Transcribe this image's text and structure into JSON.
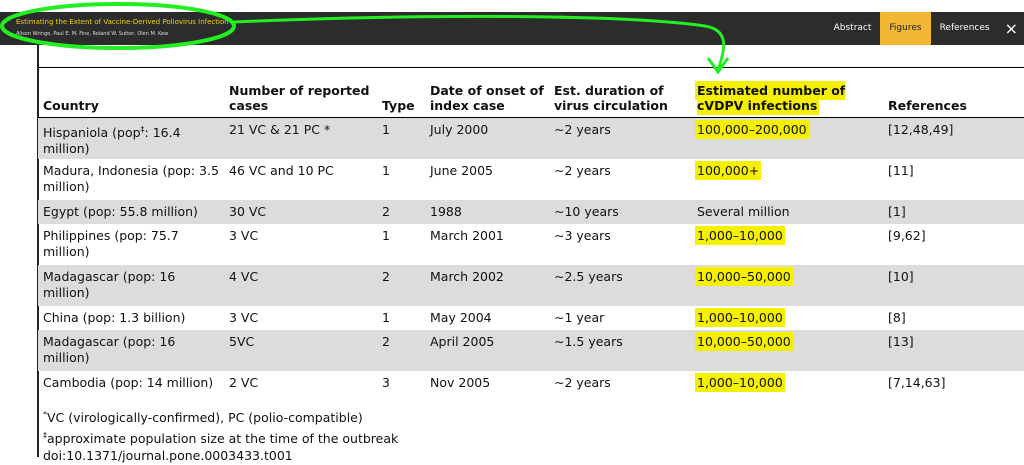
{
  "header": {
    "title": "Estimating the Extent of Vaccine-Derived Poliovirus Infection",
    "authors": "Alison Wringe,  Paul E. M. Fine,  Roland W. Sutter,  Olen M. Kew",
    "nav": [
      "Abstract",
      "Figures",
      "References"
    ],
    "close": "×"
  },
  "table": {
    "columns": [
      "Country",
      "Number of reported cases",
      "Type",
      "Date of onset of index case",
      "Est. duration of virus circulation",
      "Estimated number of cVDPV infections",
      "References"
    ],
    "rows": [
      [
        {
          "text": "Hispaniola (pop",
          "sup": "‡",
          "after": ": 16.4 million)"
        },
        "21 VC & 21 PC *",
        "1",
        "July 2000",
        "∼2 years",
        "100,000–200,000",
        "[12,48,49]"
      ],
      [
        "Madura, Indonesia (pop: 3.5 million)",
        "46 VC and 10 PC",
        "1",
        "June 2005",
        "∼2 years",
        "100,000+",
        "[11]"
      ],
      [
        "Egypt (pop: 55.8 million)",
        "30 VC",
        "2",
        "1988",
        "∼10 years",
        "Several million",
        "[1]"
      ],
      [
        "Philippines (pop: 75.7 million)",
        "3 VC",
        "1",
        "March 2001",
        "∼3 years",
        "1,000–10,000",
        "[9,62]"
      ],
      [
        "Madagascar (pop: 16 million)",
        "4 VC",
        "2",
        "March 2002",
        "∼2.5 years",
        "10,000–50,000",
        "[10]"
      ],
      [
        "China (pop: 1.3 billion)",
        "3 VC",
        "1",
        "May 2004",
        "∼1 year",
        "1,000–10,000",
        "[8]"
      ],
      [
        "Madagascar (pop: 16 million)",
        "5VC",
        "2",
        "April 2005",
        "∼1.5 years",
        "10,000–50,000",
        "[13]"
      ],
      [
        "Cambodia (pop: 14 million)",
        "2 VC",
        "3",
        "Nov 2005",
        "∼2 years",
        "1,000–10,000",
        "[7,14,63]"
      ]
    ]
  },
  "footnotes": [
    {
      "mark": "*",
      "text": "VC (virologically-confirmed), PC (polio-compatible)"
    },
    {
      "mark": "‡",
      "text": "approximate population size at the time of the outbreak"
    }
  ],
  "doi": "doi:10.1371/journal.pone.0003433.t001"
}
